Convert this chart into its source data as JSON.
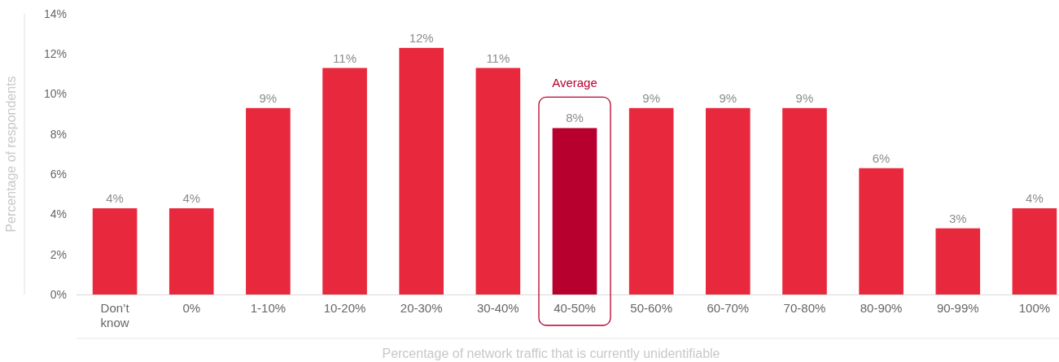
{
  "chart_data": {
    "type": "bar",
    "xlabel": "Percentage of network traffic that is currently unidentifiable",
    "ylabel": "Percentage of respondents",
    "categories": [
      "Don’t know",
      "0%",
      "1-10%",
      "10-20%",
      "20-30%",
      "30-40%",
      "40-50%",
      "50-60%",
      "60-70%",
      "70-80%",
      "80-90%",
      "90-99%",
      "100%"
    ],
    "values": [
      4.3,
      4.3,
      9.3,
      11.3,
      12.3,
      11.3,
      8.3,
      9.3,
      9.3,
      9.3,
      6.3,
      3.3,
      4.3
    ],
    "value_labels": [
      "4%",
      "4%",
      "9%",
      "11%",
      "12%",
      "11%",
      "8%",
      "9%",
      "9%",
      "9%",
      "6%",
      "3%",
      "4%"
    ],
    "colors": [
      "#e8293d",
      "#e8293d",
      "#e8293d",
      "#e8293d",
      "#e8293d",
      "#e8293d",
      "#b8002f",
      "#e8293d",
      "#e8293d",
      "#e8293d",
      "#e8293d",
      "#e8293d",
      "#e8293d"
    ],
    "annotations": [
      "Average"
    ],
    "ylim": [
      0,
      14
    ],
    "yticks": [
      {
        "value": 0,
        "label": "0%"
      },
      {
        "value": 2,
        "label": "2%"
      },
      {
        "value": 4,
        "label": "4%"
      },
      {
        "value": 6,
        "label": "6%"
      },
      {
        "value": 8,
        "label": "8%"
      },
      {
        "value": 10,
        "label": "10%"
      },
      {
        "value": 12,
        "label": "12%"
      },
      {
        "value": 14,
        "label": "14%"
      }
    ],
    "grid": false
  }
}
